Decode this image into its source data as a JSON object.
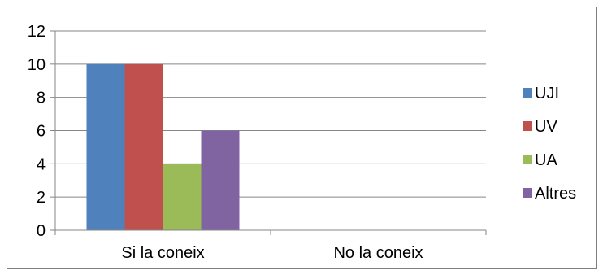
{
  "chart_data": {
    "type": "bar",
    "categories": [
      "Si la coneix",
      "No la coneix"
    ],
    "series": [
      {
        "name": "UJI",
        "color": "#4f81bd",
        "values": [
          10,
          0
        ]
      },
      {
        "name": "UV",
        "color": "#c0504d",
        "values": [
          10,
          0
        ]
      },
      {
        "name": "UA",
        "color": "#9bbb59",
        "values": [
          4,
          0
        ]
      },
      {
        "name": "Altres",
        "color": "#8064a2",
        "values": [
          6,
          0
        ]
      }
    ],
    "yticks": [
      "0",
      "2",
      "4",
      "6",
      "8",
      "10",
      "12"
    ],
    "ylim": [
      0,
      12
    ],
    "grid": true,
    "legend": "right",
    "title": "",
    "xlabel": "",
    "ylabel": ""
  }
}
